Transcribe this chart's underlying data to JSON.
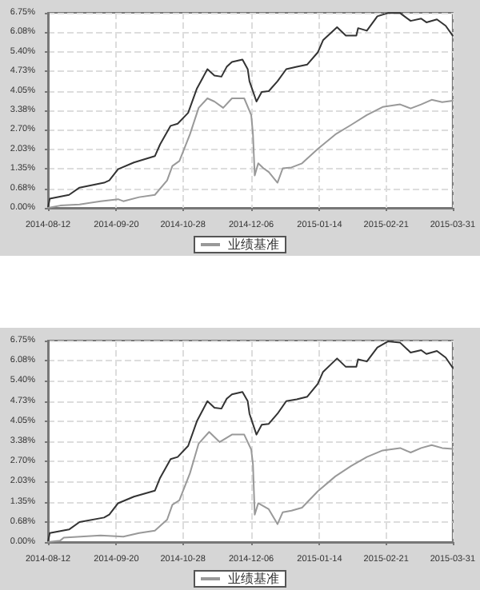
{
  "chart_data": [
    {
      "type": "line",
      "xlim": [
        "2014-08-12",
        "2015-03-31"
      ],
      "xticks": [
        "2014-08-12",
        "2014-09-20",
        "2014-10-28",
        "2014-12-06",
        "2015-01-14",
        "2015-02-21",
        "2015-03-31"
      ],
      "ylim": [
        0,
        6.75
      ],
      "yticks": [
        {
          "value": 0,
          "label": "0.00%"
        },
        {
          "value": 0.675,
          "label": "0.68%"
        },
        {
          "value": 1.35,
          "label": "1.35%"
        },
        {
          "value": 2.025,
          "label": "2.03%"
        },
        {
          "value": 2.7,
          "label": "2.70%"
        },
        {
          "value": 3.375,
          "label": "3.38%"
        },
        {
          "value": 4.05,
          "label": "4.05%"
        },
        {
          "value": 4.725,
          "label": "4.73%"
        },
        {
          "value": 5.4,
          "label": "5.40%"
        },
        {
          "value": 6.075,
          "label": "6.08%"
        },
        {
          "value": 6.75,
          "label": "6.75%"
        }
      ],
      "grid": true,
      "legend": "bottom",
      "marker": "none",
      "line_style": "solid",
      "series": [
        {
          "color": "#333333",
          "x": [
            "2014-08-12",
            "2014-08-13",
            "2014-08-24",
            "2014-08-30",
            "2014-09-13",
            "2014-09-16",
            "2014-09-21",
            "2014-09-30",
            "2014-10-12",
            "2014-10-15",
            "2014-10-21",
            "2014-10-25",
            "2014-10-31",
            "2014-11-05",
            "2014-11-11",
            "2014-11-15",
            "2014-11-19",
            "2014-11-22",
            "2014-11-25",
            "2014-12-01",
            "2014-12-04",
            "2014-12-05",
            "2014-12-09",
            "2014-12-12",
            "2014-12-16",
            "2014-12-21",
            "2014-12-26",
            "2015-01-01",
            "2015-01-07",
            "2015-01-13",
            "2015-01-16",
            "2015-01-24",
            "2015-01-29",
            "2015-02-04",
            "2015-02-05",
            "2015-02-10",
            "2015-02-16",
            "2015-02-22",
            "2015-03-01",
            "2015-03-07",
            "2015-03-13",
            "2015-03-16",
            "2015-03-22",
            "2015-03-27",
            "2015-03-31"
          ],
          "values": [
            0,
            0.32,
            0.45,
            0.7,
            0.87,
            0.95,
            1.34,
            1.57,
            1.79,
            2.2,
            2.84,
            2.91,
            3.29,
            4.13,
            4.8,
            4.58,
            4.54,
            4.88,
            5.05,
            5.13,
            4.8,
            4.38,
            3.68,
            4.01,
            4.04,
            4.38,
            4.8,
            4.88,
            4.96,
            5.38,
            5.8,
            6.25,
            5.96,
            5.96,
            6.22,
            6.13,
            6.63,
            6.74,
            6.74,
            6.47,
            6.55,
            6.42,
            6.52,
            6.3,
            5.96
          ]
        },
        {
          "name": "业绩基准",
          "color": "#999999",
          "x": [
            "2014-08-12",
            "2014-08-19",
            "2014-08-30",
            "2014-09-11",
            "2014-09-21",
            "2014-09-24",
            "2014-10-03",
            "2014-10-12",
            "2014-10-19",
            "2014-10-22",
            "2014-10-26",
            "2014-11-01",
            "2014-11-06",
            "2014-11-11",
            "2014-11-15",
            "2014-11-20",
            "2014-11-25",
            "2014-12-02",
            "2014-12-06",
            "2014-12-07",
            "2014-12-08",
            "2014-12-10",
            "2014-12-13",
            "2014-12-16",
            "2014-12-21",
            "2014-12-24",
            "2014-12-29",
            "2015-01-04",
            "2015-01-13",
            "2015-01-23",
            "2015-02-01",
            "2015-02-10",
            "2015-02-19",
            "2015-03-01",
            "2015-03-07",
            "2015-03-13",
            "2015-03-19",
            "2015-03-25",
            "2015-03-31"
          ],
          "values": [
            0,
            0.08,
            0.12,
            0.23,
            0.3,
            0.23,
            0.37,
            0.45,
            0.95,
            1.45,
            1.62,
            2.54,
            3.46,
            3.79,
            3.68,
            3.46,
            3.79,
            3.79,
            3.21,
            2.54,
            1.12,
            1.54,
            1.37,
            1.24,
            0.87,
            1.37,
            1.4,
            1.54,
            2.04,
            2.54,
            2.87,
            3.21,
            3.49,
            3.58,
            3.44,
            3.58,
            3.74,
            3.66,
            3.71
          ]
        }
      ]
    },
    {
      "type": "line",
      "xlim": [
        "2014-08-12",
        "2015-03-31"
      ],
      "xticks": [
        "2014-08-12",
        "2014-09-20",
        "2014-10-28",
        "2014-12-06",
        "2015-01-14",
        "2015-02-21",
        "2015-03-31"
      ],
      "ylim": [
        0,
        6.75
      ],
      "yticks": [
        {
          "value": 0,
          "label": "0.00%"
        },
        {
          "value": 0.675,
          "label": "0.68%"
        },
        {
          "value": 1.35,
          "label": "1.35%"
        },
        {
          "value": 2.025,
          "label": "2.03%"
        },
        {
          "value": 2.7,
          "label": "2.70%"
        },
        {
          "value": 3.375,
          "label": "3.38%"
        },
        {
          "value": 4.05,
          "label": "4.05%"
        },
        {
          "value": 4.725,
          "label": "4.73%"
        },
        {
          "value": 5.4,
          "label": "5.40%"
        },
        {
          "value": 6.075,
          "label": "6.08%"
        },
        {
          "value": 6.75,
          "label": "6.75%"
        }
      ],
      "grid": true,
      "legend": "bottom",
      "marker": "none",
      "line_style": "solid",
      "series": [
        {
          "color": "#333333",
          "x": [
            "2014-08-12",
            "2014-08-13",
            "2014-08-24",
            "2014-08-30",
            "2014-09-13",
            "2014-09-16",
            "2014-09-21",
            "2014-09-30",
            "2014-10-12",
            "2014-10-15",
            "2014-10-21",
            "2014-10-25",
            "2014-10-31",
            "2014-11-05",
            "2014-11-11",
            "2014-11-15",
            "2014-11-19",
            "2014-11-22",
            "2014-11-25",
            "2014-12-01",
            "2014-12-04",
            "2014-12-05",
            "2014-12-09",
            "2014-12-12",
            "2014-12-16",
            "2014-12-21",
            "2014-12-26",
            "2015-01-01",
            "2015-01-07",
            "2015-01-13",
            "2015-01-16",
            "2015-01-24",
            "2015-01-29",
            "2015-02-04",
            "2015-02-05",
            "2015-02-10",
            "2015-02-16",
            "2015-02-22",
            "2015-03-01",
            "2015-03-07",
            "2015-03-13",
            "2015-03-16",
            "2015-03-22",
            "2015-03-27",
            "2015-03-31"
          ],
          "values": [
            0,
            0.3,
            0.42,
            0.67,
            0.82,
            0.92,
            1.3,
            1.52,
            1.72,
            2.15,
            2.78,
            2.85,
            3.22,
            4.05,
            4.72,
            4.5,
            4.47,
            4.8,
            4.95,
            5.03,
            4.72,
            4.3,
            3.6,
            3.93,
            3.96,
            4.3,
            4.72,
            4.78,
            4.87,
            5.3,
            5.7,
            6.15,
            5.87,
            5.87,
            6.12,
            6.05,
            6.52,
            6.72,
            6.68,
            6.35,
            6.43,
            6.3,
            6.4,
            6.18,
            5.84
          ]
        },
        {
          "name": "业绩基准",
          "color": "#999999",
          "x": [
            "2014-08-12",
            "2014-08-19",
            "2014-08-21",
            "2014-09-11",
            "2014-09-24",
            "2014-10-03",
            "2014-10-12",
            "2014-10-19",
            "2014-10-22",
            "2014-10-26",
            "2014-11-01",
            "2014-11-06",
            "2014-11-12",
            "2014-11-18",
            "2014-11-25",
            "2014-12-02",
            "2014-12-06",
            "2014-12-07",
            "2014-12-08",
            "2014-12-10",
            "2014-12-13",
            "2014-12-16",
            "2014-12-21",
            "2014-12-24",
            "2014-12-29",
            "2015-01-04",
            "2015-01-13",
            "2015-01-23",
            "2015-02-01",
            "2015-02-10",
            "2015-02-19",
            "2015-03-01",
            "2015-03-07",
            "2015-03-13",
            "2015-03-19",
            "2015-03-25",
            "2015-03-31"
          ],
          "values": [
            0,
            0.05,
            0.15,
            0.22,
            0.18,
            0.3,
            0.38,
            0.75,
            1.25,
            1.4,
            2.3,
            3.3,
            3.69,
            3.35,
            3.6,
            3.6,
            3.1,
            2.6,
            0.92,
            1.3,
            1.2,
            1.1,
            0.6,
            1.0,
            1.05,
            1.15,
            1.7,
            2.2,
            2.55,
            2.85,
            3.07,
            3.15,
            3.0,
            3.15,
            3.25,
            3.15,
            3.12
          ]
        }
      ]
    }
  ]
}
